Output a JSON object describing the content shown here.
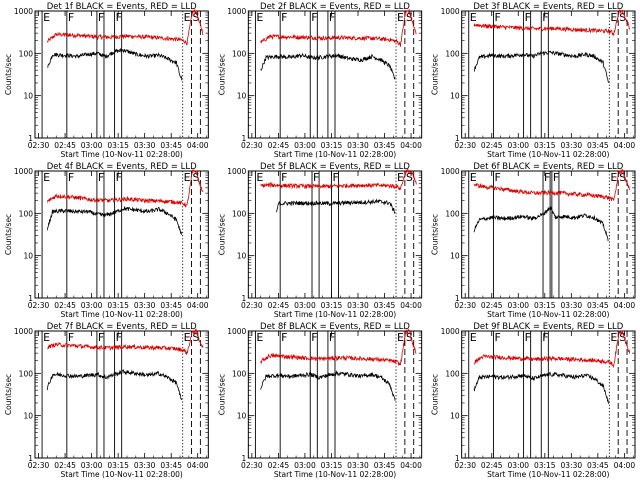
{
  "chart_data": {
    "type": "line",
    "layout": "3x3",
    "yscale": "log",
    "ylim": [
      1,
      1000
    ],
    "y_ticks": [
      1,
      10,
      100,
      1000
    ],
    "y_tick_labels": [
      "1",
      "10",
      "100",
      "1000"
    ],
    "ylabel": "Counts/sec",
    "x_tick_labels": [
      "02:30",
      "02:45",
      "03:00",
      "03:15",
      "03:30",
      "03:45",
      "04:00"
    ],
    "x_ticks_min": [
      0,
      15,
      30,
      45,
      60,
      75,
      90
    ],
    "xlim_min": [
      -2,
      96
    ],
    "xlabel": "Start Time (10-Nov-11 02:28:00)",
    "colors": {
      "events": "#000000",
      "lld": "#dd0000"
    },
    "markers": [
      {
        "t": 2,
        "label": "E",
        "style": "solid"
      },
      {
        "t": 16,
        "label": "F",
        "style": "solid"
      },
      {
        "t": 81.5,
        "label": "E",
        "style": "dotted"
      },
      {
        "t": 86.5,
        "label": "S",
        "style": "dashed"
      },
      {
        "t": 91.5,
        "label": "",
        "style": "dashed"
      }
    ],
    "panels": [
      {
        "title": "Det 1f BLACK = Events, RED = LLD",
        "bars": [
          {
            "t0": 33,
            "t1": 37,
            "label": "F"
          },
          {
            "t0": 43,
            "t1": 47,
            "label": "F"
          }
        ],
        "events": [
          [
            5,
            45
          ],
          [
            8,
            95
          ],
          [
            15,
            90
          ],
          [
            22,
            85
          ],
          [
            28,
            95
          ],
          [
            33,
            100
          ],
          [
            38,
            85
          ],
          [
            43,
            110
          ],
          [
            48,
            120
          ],
          [
            55,
            95
          ],
          [
            62,
            85
          ],
          [
            68,
            90
          ],
          [
            73,
            75
          ],
          [
            78,
            60
          ],
          [
            80,
            30
          ],
          [
            81,
            25
          ]
        ],
        "lld": [
          [
            5,
            190
          ],
          [
            10,
            280
          ],
          [
            20,
            270
          ],
          [
            30,
            250
          ],
          [
            40,
            240
          ],
          [
            50,
            255
          ],
          [
            60,
            245
          ],
          [
            70,
            230
          ],
          [
            78,
            215
          ],
          [
            82,
            200
          ],
          [
            84,
            175
          ],
          [
            87,
            950
          ],
          [
            89,
            1000
          ],
          [
            91,
            520
          ],
          [
            93,
            300
          ]
        ]
      },
      {
        "title": "Det 2f BLACK = Events, RED = LLD",
        "bars": [
          {
            "t0": 33,
            "t1": 37,
            "label": "F"
          },
          {
            "t0": 43,
            "t1": 47,
            "label": "F"
          }
        ],
        "events": [
          [
            5,
            40
          ],
          [
            8,
            80
          ],
          [
            15,
            85
          ],
          [
            22,
            80
          ],
          [
            28,
            90
          ],
          [
            33,
            80
          ],
          [
            38,
            80
          ],
          [
            43,
            85
          ],
          [
            48,
            90
          ],
          [
            55,
            75
          ],
          [
            62,
            70
          ],
          [
            68,
            85
          ],
          [
            73,
            70
          ],
          [
            78,
            50
          ],
          [
            80,
            30
          ],
          [
            81,
            25
          ]
        ],
        "lld": [
          [
            5,
            180
          ],
          [
            10,
            250
          ],
          [
            20,
            245
          ],
          [
            30,
            240
          ],
          [
            40,
            230
          ],
          [
            50,
            235
          ],
          [
            60,
            230
          ],
          [
            70,
            225
          ],
          [
            78,
            210
          ],
          [
            82,
            190
          ],
          [
            84,
            160
          ],
          [
            87,
            950
          ],
          [
            89,
            1000
          ],
          [
            91,
            500
          ],
          [
            93,
            280
          ]
        ]
      },
      {
        "title": "Det 3f BLACK = Events, RED = LLD",
        "bars": [
          {
            "t0": 33,
            "t1": 37,
            "label": "F"
          },
          {
            "t0": 43,
            "t1": 47,
            "label": "F"
          }
        ],
        "events": [
          [
            5,
            40
          ],
          [
            8,
            80
          ],
          [
            15,
            90
          ],
          [
            22,
            85
          ],
          [
            28,
            90
          ],
          [
            33,
            95
          ],
          [
            38,
            85
          ],
          [
            43,
            100
          ],
          [
            48,
            105
          ],
          [
            55,
            95
          ],
          [
            62,
            85
          ],
          [
            68,
            95
          ],
          [
            73,
            85
          ],
          [
            78,
            60
          ],
          [
            80,
            30
          ],
          [
            81,
            20
          ]
        ],
        "lld": [
          [
            5,
            480
          ],
          [
            10,
            450
          ],
          [
            20,
            420
          ],
          [
            30,
            400
          ],
          [
            40,
            380
          ],
          [
            50,
            390
          ],
          [
            60,
            370
          ],
          [
            70,
            350
          ],
          [
            78,
            340
          ],
          [
            82,
            330
          ],
          [
            84,
            290
          ],
          [
            87,
            950
          ],
          [
            89,
            1000
          ],
          [
            91,
            600
          ],
          [
            93,
            400
          ]
        ]
      },
      {
        "title": "Det 4f BLACK = Events, RED = LLD",
        "bars": [
          {
            "t0": 33,
            "t1": 37,
            "label": "F"
          },
          {
            "t0": 43,
            "t1": 47,
            "label": "F"
          }
        ],
        "events": [
          [
            5,
            45
          ],
          [
            8,
            110
          ],
          [
            15,
            115
          ],
          [
            22,
            110
          ],
          [
            28,
            110
          ],
          [
            33,
            95
          ],
          [
            38,
            90
          ],
          [
            43,
            105
          ],
          [
            48,
            130
          ],
          [
            55,
            120
          ],
          [
            62,
            110
          ],
          [
            68,
            125
          ],
          [
            73,
            100
          ],
          [
            78,
            70
          ],
          [
            80,
            40
          ],
          [
            81,
            30
          ]
        ],
        "lld": [
          [
            5,
            190
          ],
          [
            10,
            260
          ],
          [
            20,
            240
          ],
          [
            30,
            210
          ],
          [
            40,
            200
          ],
          [
            50,
            220
          ],
          [
            60,
            200
          ],
          [
            70,
            195
          ],
          [
            78,
            185
          ],
          [
            82,
            170
          ],
          [
            84,
            150
          ],
          [
            87,
            950
          ],
          [
            89,
            1000
          ],
          [
            91,
            500
          ],
          [
            93,
            300
          ]
        ]
      },
      {
        "title": "Det 5f BLACK = Events, RED = LLD",
        "bars": [
          {
            "t0": 34,
            "t1": 38,
            "label": "F"
          },
          {
            "t0": 45,
            "t1": 49,
            "label": "F"
          }
        ],
        "events": [
          [
            14,
            100
          ],
          [
            15,
            170
          ],
          [
            25,
            175
          ],
          [
            35,
            175
          ],
          [
            45,
            170
          ],
          [
            55,
            180
          ],
          [
            65,
            185
          ],
          [
            72,
            190
          ],
          [
            78,
            175
          ],
          [
            80,
            120
          ],
          [
            81,
            110
          ]
        ],
        "lld": [
          [
            5,
            450
          ],
          [
            10,
            470
          ],
          [
            20,
            450
          ],
          [
            30,
            440
          ],
          [
            40,
            430
          ],
          [
            50,
            450
          ],
          [
            60,
            460
          ],
          [
            70,
            460
          ],
          [
            78,
            450
          ],
          [
            82,
            430
          ],
          [
            84,
            380
          ],
          [
            87,
            950
          ],
          [
            89,
            1000
          ],
          [
            91,
            800
          ],
          [
            93,
            500
          ]
        ]
      },
      {
        "title": "Det 6f BLACK = Events, RED = LLD",
        "bars": [
          {
            "t0": 44,
            "t1": 48,
            "label": "F"
          },
          {
            "t0": 49,
            "t1": 53,
            "label": "F"
          }
        ],
        "events": [
          [
            5,
            40
          ],
          [
            8,
            70
          ],
          [
            15,
            80
          ],
          [
            22,
            75
          ],
          [
            28,
            80
          ],
          [
            33,
            85
          ],
          [
            38,
            75
          ],
          [
            44,
            95
          ],
          [
            48,
            140
          ],
          [
            51,
            80
          ],
          [
            55,
            85
          ],
          [
            62,
            80
          ],
          [
            68,
            90
          ],
          [
            73,
            80
          ],
          [
            78,
            55
          ],
          [
            80,
            30
          ],
          [
            81,
            22
          ]
        ],
        "lld": [
          [
            5,
            480
          ],
          [
            10,
            430
          ],
          [
            20,
            380
          ],
          [
            30,
            330
          ],
          [
            40,
            300
          ],
          [
            50,
            310
          ],
          [
            60,
            290
          ],
          [
            70,
            270
          ],
          [
            78,
            250
          ],
          [
            82,
            230
          ],
          [
            84,
            200
          ],
          [
            87,
            950
          ],
          [
            89,
            1000
          ],
          [
            91,
            600
          ],
          [
            93,
            350
          ]
        ]
      },
      {
        "title": "Det 7f BLACK = Events, RED = LLD",
        "bars": [
          {
            "t0": 33,
            "t1": 37,
            "label": "F"
          },
          {
            "t0": 43,
            "t1": 47,
            "label": "F"
          }
        ],
        "events": [
          [
            5,
            45
          ],
          [
            8,
            95
          ],
          [
            15,
            90
          ],
          [
            22,
            85
          ],
          [
            28,
            90
          ],
          [
            33,
            95
          ],
          [
            38,
            80
          ],
          [
            43,
            95
          ],
          [
            48,
            110
          ],
          [
            55,
            100
          ],
          [
            62,
            90
          ],
          [
            68,
            100
          ],
          [
            73,
            80
          ],
          [
            78,
            60
          ],
          [
            80,
            30
          ],
          [
            81,
            22
          ]
        ],
        "lld": [
          [
            5,
            420
          ],
          [
            10,
            480
          ],
          [
            20,
            450
          ],
          [
            30,
            420
          ],
          [
            40,
            400
          ],
          [
            50,
            430
          ],
          [
            60,
            410
          ],
          [
            70,
            400
          ],
          [
            78,
            380
          ],
          [
            82,
            350
          ],
          [
            84,
            300
          ],
          [
            87,
            950
          ],
          [
            89,
            1000
          ],
          [
            91,
            600
          ],
          [
            93,
            400
          ]
        ]
      },
      {
        "title": "Det 8f BLACK = Events, RED = LLD",
        "bars": [
          {
            "t0": 33,
            "t1": 37,
            "label": "F"
          },
          {
            "t0": 43,
            "t1": 47,
            "label": "F"
          }
        ],
        "events": [
          [
            5,
            45
          ],
          [
            8,
            85
          ],
          [
            15,
            90
          ],
          [
            22,
            85
          ],
          [
            28,
            90
          ],
          [
            33,
            95
          ],
          [
            38,
            80
          ],
          [
            43,
            90
          ],
          [
            48,
            100
          ],
          [
            55,
            95
          ],
          [
            62,
            85
          ],
          [
            68,
            95
          ],
          [
            73,
            80
          ],
          [
            78,
            55
          ],
          [
            80,
            30
          ],
          [
            81,
            22
          ]
        ],
        "lld": [
          [
            5,
            190
          ],
          [
            10,
            260
          ],
          [
            20,
            250
          ],
          [
            30,
            230
          ],
          [
            40,
            220
          ],
          [
            50,
            235
          ],
          [
            60,
            225
          ],
          [
            70,
            215
          ],
          [
            78,
            200
          ],
          [
            82,
            185
          ],
          [
            84,
            160
          ],
          [
            87,
            950
          ],
          [
            89,
            1000
          ],
          [
            91,
            500
          ],
          [
            93,
            300
          ]
        ]
      },
      {
        "title": "Det 9f BLACK = Events, RED = LLD",
        "bars": [
          {
            "t0": 33,
            "t1": 37,
            "label": "F"
          },
          {
            "t0": 43,
            "t1": 47,
            "label": "F"
          }
        ],
        "events": [
          [
            5,
            40
          ],
          [
            8,
            80
          ],
          [
            15,
            85
          ],
          [
            22,
            80
          ],
          [
            28,
            85
          ],
          [
            33,
            90
          ],
          [
            38,
            75
          ],
          [
            43,
            85
          ],
          [
            48,
            95
          ],
          [
            55,
            90
          ],
          [
            62,
            80
          ],
          [
            68,
            90
          ],
          [
            73,
            75
          ],
          [
            78,
            50
          ],
          [
            80,
            28
          ],
          [
            81,
            20
          ]
        ],
        "lld": [
          [
            5,
            180
          ],
          [
            10,
            250
          ],
          [
            20,
            240
          ],
          [
            30,
            225
          ],
          [
            40,
            215
          ],
          [
            50,
            225
          ],
          [
            60,
            215
          ],
          [
            70,
            205
          ],
          [
            78,
            195
          ],
          [
            82,
            180
          ],
          [
            84,
            155
          ],
          [
            87,
            950
          ],
          [
            89,
            1000
          ],
          [
            91,
            500
          ],
          [
            93,
            300
          ]
        ]
      }
    ]
  }
}
